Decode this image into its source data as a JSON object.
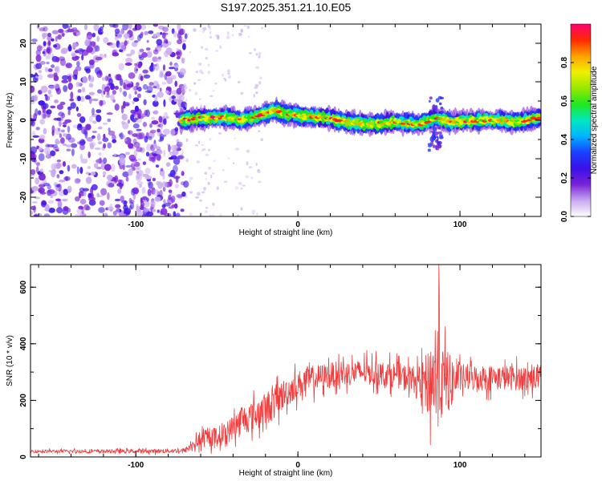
{
  "title": "S197.2025.351.21.10.E05",
  "chart_data": [
    {
      "type": "heatmap",
      "xlabel": "Height of straight line (km)",
      "ylabel": "Frequency (Hz)",
      "xlim": [
        -165,
        150
      ],
      "ylim": [
        -25,
        25
      ],
      "x_ticks": [
        -100,
        0,
        100
      ],
      "y_ticks": [
        -20,
        -10,
        0,
        10,
        20
      ],
      "colorbar": {
        "label": "Normalized spectral amplitude",
        "range": [
          0,
          1
        ],
        "ticks": [
          "0.0",
          "0.2",
          "0.4",
          "0.6",
          "0.8"
        ],
        "colors": [
          "#ffffff",
          "#c8a8f0",
          "#7a22d8",
          "#3a10e8",
          "#1a40ff",
          "#00b4ff",
          "#00e8c0",
          "#20e820",
          "#98e800",
          "#f0f000",
          "#ffa000",
          "#ff2a00",
          "#ff0070"
        ]
      },
      "regions": {
        "noise_x_range": [
          -165,
          -72
        ],
        "noise_level": "low (0.1–0.3), full frequency band",
        "signal_x_range": [
          -72,
          150
        ],
        "signal_freq_center_hz": [
          [
            -72,
            0
          ],
          [
            -60,
            0.5
          ],
          [
            -45,
            0.8
          ],
          [
            -35,
            0
          ],
          [
            -25,
            1
          ],
          [
            -15,
            2.5
          ],
          [
            -5,
            1.5
          ],
          [
            5,
            1
          ],
          [
            20,
            0.5
          ],
          [
            30,
            -0.5
          ],
          [
            45,
            -1
          ],
          [
            60,
            -0.5
          ],
          [
            75,
            -1
          ],
          [
            85,
            0.5
          ],
          [
            95,
            -0.5
          ],
          [
            110,
            0
          ],
          [
            125,
            0
          ],
          [
            135,
            -0.5
          ],
          [
            145,
            0.5
          ]
        ],
        "signal_bandwidth_hz": 3,
        "signal_peak_amplitude": 1.0,
        "broadband_feature_x": 85,
        "broadband_feature_freq_range": [
          -8,
          6
        ]
      },
      "colors": {
        "signal_core": "#ff2a00",
        "noise": "#7a22d8"
      }
    },
    {
      "type": "line",
      "xlabel": "Height of straight line (km)",
      "ylabel": "SNR (10 * v/v)",
      "xlim": [
        -165,
        150
      ],
      "ylim": [
        0,
        680
      ],
      "x_ticks": [
        -100,
        0,
        100
      ],
      "y_ticks": [
        0,
        200,
        400,
        600
      ],
      "color": "#f03c3c",
      "envelope": [
        {
          "x": -165,
          "mean": 20,
          "spread": 10
        },
        {
          "x": -100,
          "mean": 20,
          "spread": 12
        },
        {
          "x": -70,
          "mean": 22,
          "spread": 15
        },
        {
          "x": -60,
          "mean": 60,
          "spread": 50
        },
        {
          "x": -45,
          "mean": 80,
          "spread": 70
        },
        {
          "x": -35,
          "mean": 130,
          "spread": 90
        },
        {
          "x": -25,
          "mean": 150,
          "spread": 100
        },
        {
          "x": -15,
          "mean": 190,
          "spread": 110
        },
        {
          "x": -5,
          "mean": 240,
          "spread": 90
        },
        {
          "x": 5,
          "mean": 270,
          "spread": 90
        },
        {
          "x": 20,
          "mean": 290,
          "spread": 80
        },
        {
          "x": 40,
          "mean": 300,
          "spread": 80
        },
        {
          "x": 60,
          "mean": 290,
          "spread": 80
        },
        {
          "x": 75,
          "mean": 270,
          "spread": 90
        },
        {
          "x": 80,
          "mean": 260,
          "spread": 200
        },
        {
          "x": 85,
          "mean": 300,
          "spread": 380
        },
        {
          "x": 90,
          "mean": 260,
          "spread": 220
        },
        {
          "x": 100,
          "mean": 280,
          "spread": 90
        },
        {
          "x": 125,
          "mean": 280,
          "spread": 80
        },
        {
          "x": 150,
          "mean": 280,
          "spread": 80
        }
      ],
      "peak": {
        "x": 87,
        "y": 680
      }
    }
  ]
}
